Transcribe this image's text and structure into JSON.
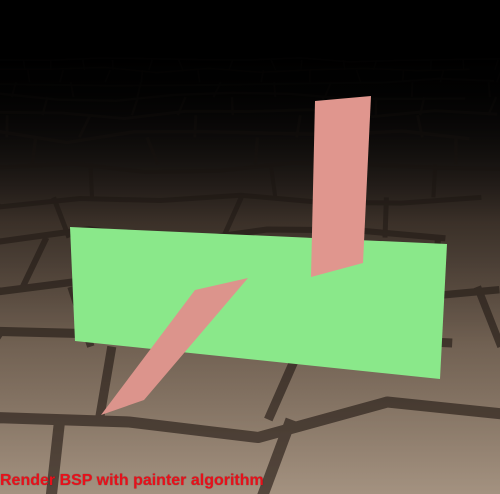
{
  "caption": {
    "text": "Render BSP with painter algorithm",
    "color": "#e8101a"
  },
  "scene": {
    "floor": "stone-floor-texture",
    "polygons": [
      {
        "name": "green-plane",
        "color": "#8ae88a"
      },
      {
        "name": "upper-red-plane",
        "color": "#e0968e"
      },
      {
        "name": "lower-red-plane",
        "color": "#dc948c"
      }
    ]
  }
}
